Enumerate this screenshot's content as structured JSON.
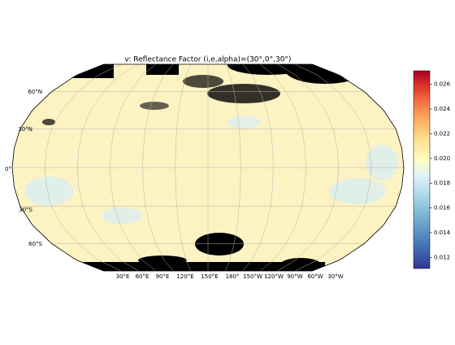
{
  "title": "v: Reflectance Factor (i,e,alpha)=(30°,0°,30°)",
  "lat_labels": [
    "60°N",
    "30°N",
    "0°",
    "30°S",
    "60°S"
  ],
  "lon_labels": [
    "30°E",
    "60°E",
    "90°E",
    "120°E",
    "150°E",
    "180°",
    "150°W",
    "120°W",
    "90°W",
    "60°W",
    "30°W"
  ],
  "colorbar": {
    "clim": [
      0.0111,
      0.0271
    ],
    "ticks": [
      0.012,
      0.014,
      0.016,
      0.018,
      {
        "value": 0.02,
        "label": "0.020"
      },
      0.022,
      0.024,
      0.026
    ]
  }
}
